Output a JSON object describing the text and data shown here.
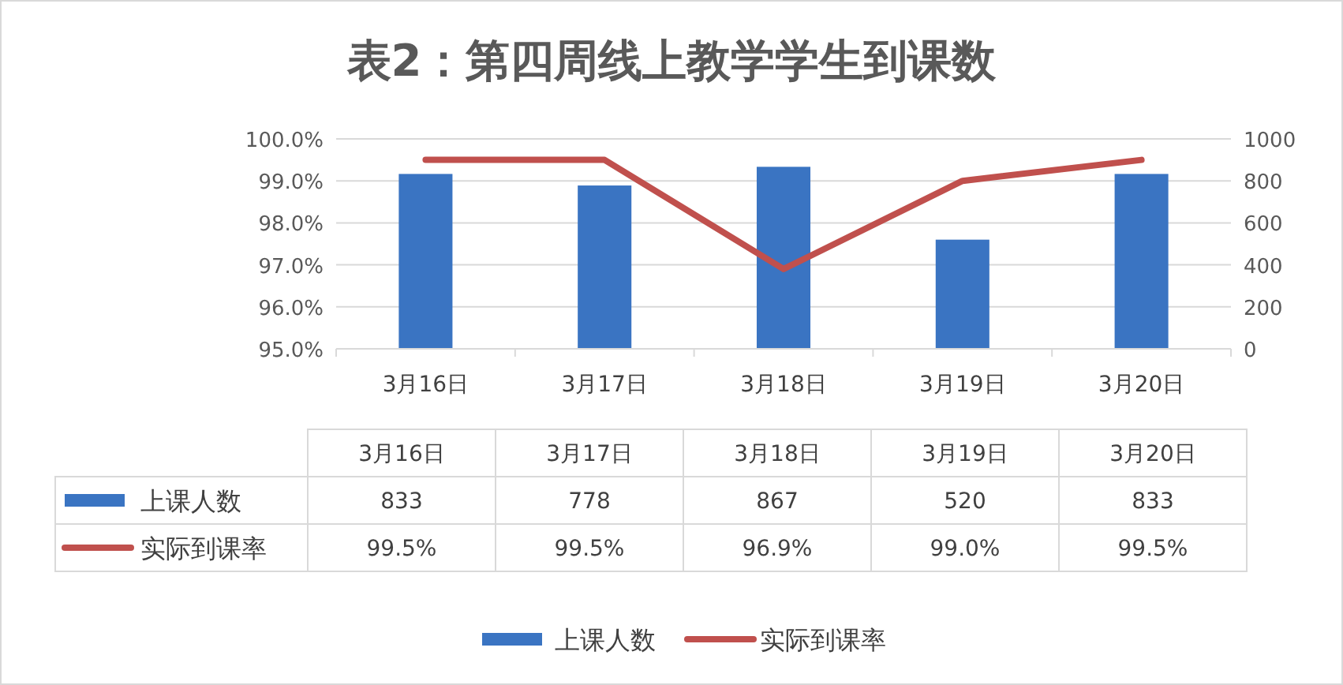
{
  "chart_data": {
    "type": "bar",
    "title": "表2：第四周线上教学学生到课数",
    "categories": [
      "3月16日",
      "3月17日",
      "3月18日",
      "3月19日",
      "3月20日"
    ],
    "series": [
      {
        "name": "上课人数",
        "axis": "y2",
        "color": "#3a74c2",
        "values": [
          833,
          778,
          867,
          520,
          833
        ],
        "value_labels": [
          "833",
          "778",
          "867",
          "520",
          "833"
        ]
      },
      {
        "name": "实际到课率",
        "type": "line",
        "axis": "y",
        "color": "#c0504d",
        "values": [
          99.5,
          99.5,
          96.9,
          99.0,
          99.5
        ],
        "value_labels": [
          "99.5%",
          "99.5%",
          "96.9%",
          "99.0%",
          "99.5%"
        ]
      }
    ],
    "ylim": [
      95,
      100
    ],
    "yticks": [
      {
        "value": 95,
        "label": "95.0%"
      },
      {
        "value": 96,
        "label": "96.0%"
      },
      {
        "value": 97,
        "label": "97.0%"
      },
      {
        "value": 98,
        "label": "98.0%"
      },
      {
        "value": 99,
        "label": "99.0%"
      },
      {
        "value": 100,
        "label": "100.0%"
      }
    ],
    "y2lim": [
      0,
      1000
    ],
    "y2ticks": [
      0,
      200,
      400,
      600,
      800,
      1000
    ],
    "grid": "y",
    "legend": "bottom",
    "marker": "none",
    "line_style": "solid"
  }
}
